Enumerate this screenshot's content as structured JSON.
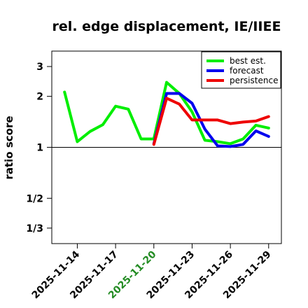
{
  "chart_data": {
    "type": "line",
    "title": "rel. edge displacement, IE/IIEE",
    "ylabel": "ratio score",
    "xlabel": "",
    "y_scale": "log",
    "ylim": [
      0.27,
      3.7
    ],
    "reference_line": 1,
    "y_ticks": [
      {
        "value": 3,
        "label": "3"
      },
      {
        "value": 2,
        "label": "2"
      },
      {
        "value": 1,
        "label": "1"
      },
      {
        "value": 0.5,
        "label": "1/2"
      },
      {
        "value": 0.333333,
        "label": "1/3"
      }
    ],
    "x_ticks": [
      {
        "date": "2025-11-14",
        "label": "2025-11-14",
        "color": "#000000"
      },
      {
        "date": "2025-11-17",
        "label": "2025-11-17",
        "color": "#000000"
      },
      {
        "date": "2025-11-20",
        "label": "2025-11-20",
        "color": "#228B22"
      },
      {
        "date": "2025-11-23",
        "label": "2025-11-23",
        "color": "#000000"
      },
      {
        "date": "2025-11-26",
        "label": "2025-11-26",
        "color": "#000000"
      },
      {
        "date": "2025-11-29",
        "label": "2025-11-29",
        "color": "#000000"
      }
    ],
    "xlim": [
      "2025-11-12",
      "2025-11-30"
    ],
    "legend_position": "top-right",
    "series": [
      {
        "name": "best est.",
        "color": "#00EE00",
        "points": [
          {
            "x": "2025-11-13",
            "y": 2.12
          },
          {
            "x": "2025-11-14",
            "y": 1.08
          },
          {
            "x": "2025-11-15",
            "y": 1.24
          },
          {
            "x": "2025-11-16",
            "y": 1.36
          },
          {
            "x": "2025-11-17",
            "y": 1.75
          },
          {
            "x": "2025-11-18",
            "y": 1.68
          },
          {
            "x": "2025-11-19",
            "y": 1.12
          },
          {
            "x": "2025-11-20",
            "y": 1.12
          },
          {
            "x": "2025-11-21",
            "y": 2.42
          },
          {
            "x": "2025-11-22",
            "y": 2.08
          },
          {
            "x": "2025-11-23",
            "y": 1.62
          },
          {
            "x": "2025-11-24",
            "y": 1.1
          },
          {
            "x": "2025-11-25",
            "y": 1.08
          },
          {
            "x": "2025-11-26",
            "y": 1.05
          },
          {
            "x": "2025-11-27",
            "y": 1.12
          },
          {
            "x": "2025-11-28",
            "y": 1.35
          },
          {
            "x": "2025-11-29",
            "y": 1.3
          }
        ]
      },
      {
        "name": "forecast",
        "color": "#0000EE",
        "points": [
          {
            "x": "2025-11-20",
            "y": 1.05
          },
          {
            "x": "2025-11-21",
            "y": 2.08
          },
          {
            "x": "2025-11-22",
            "y": 2.08
          },
          {
            "x": "2025-11-23",
            "y": 1.82
          },
          {
            "x": "2025-11-24",
            "y": 1.28
          },
          {
            "x": "2025-11-25",
            "y": 1.02
          },
          {
            "x": "2025-11-26",
            "y": 1.01
          },
          {
            "x": "2025-11-27",
            "y": 1.04
          },
          {
            "x": "2025-11-28",
            "y": 1.25
          },
          {
            "x": "2025-11-29",
            "y": 1.16
          }
        ]
      },
      {
        "name": "persistence",
        "color": "#EE0000",
        "points": [
          {
            "x": "2025-11-20",
            "y": 1.04
          },
          {
            "x": "2025-11-21",
            "y": 1.95
          },
          {
            "x": "2025-11-22",
            "y": 1.8
          },
          {
            "x": "2025-11-23",
            "y": 1.45
          },
          {
            "x": "2025-11-24",
            "y": 1.45
          },
          {
            "x": "2025-11-25",
            "y": 1.45
          },
          {
            "x": "2025-11-26",
            "y": 1.38
          },
          {
            "x": "2025-11-27",
            "y": 1.41
          },
          {
            "x": "2025-11-28",
            "y": 1.43
          },
          {
            "x": "2025-11-29",
            "y": 1.52
          }
        ]
      }
    ]
  }
}
